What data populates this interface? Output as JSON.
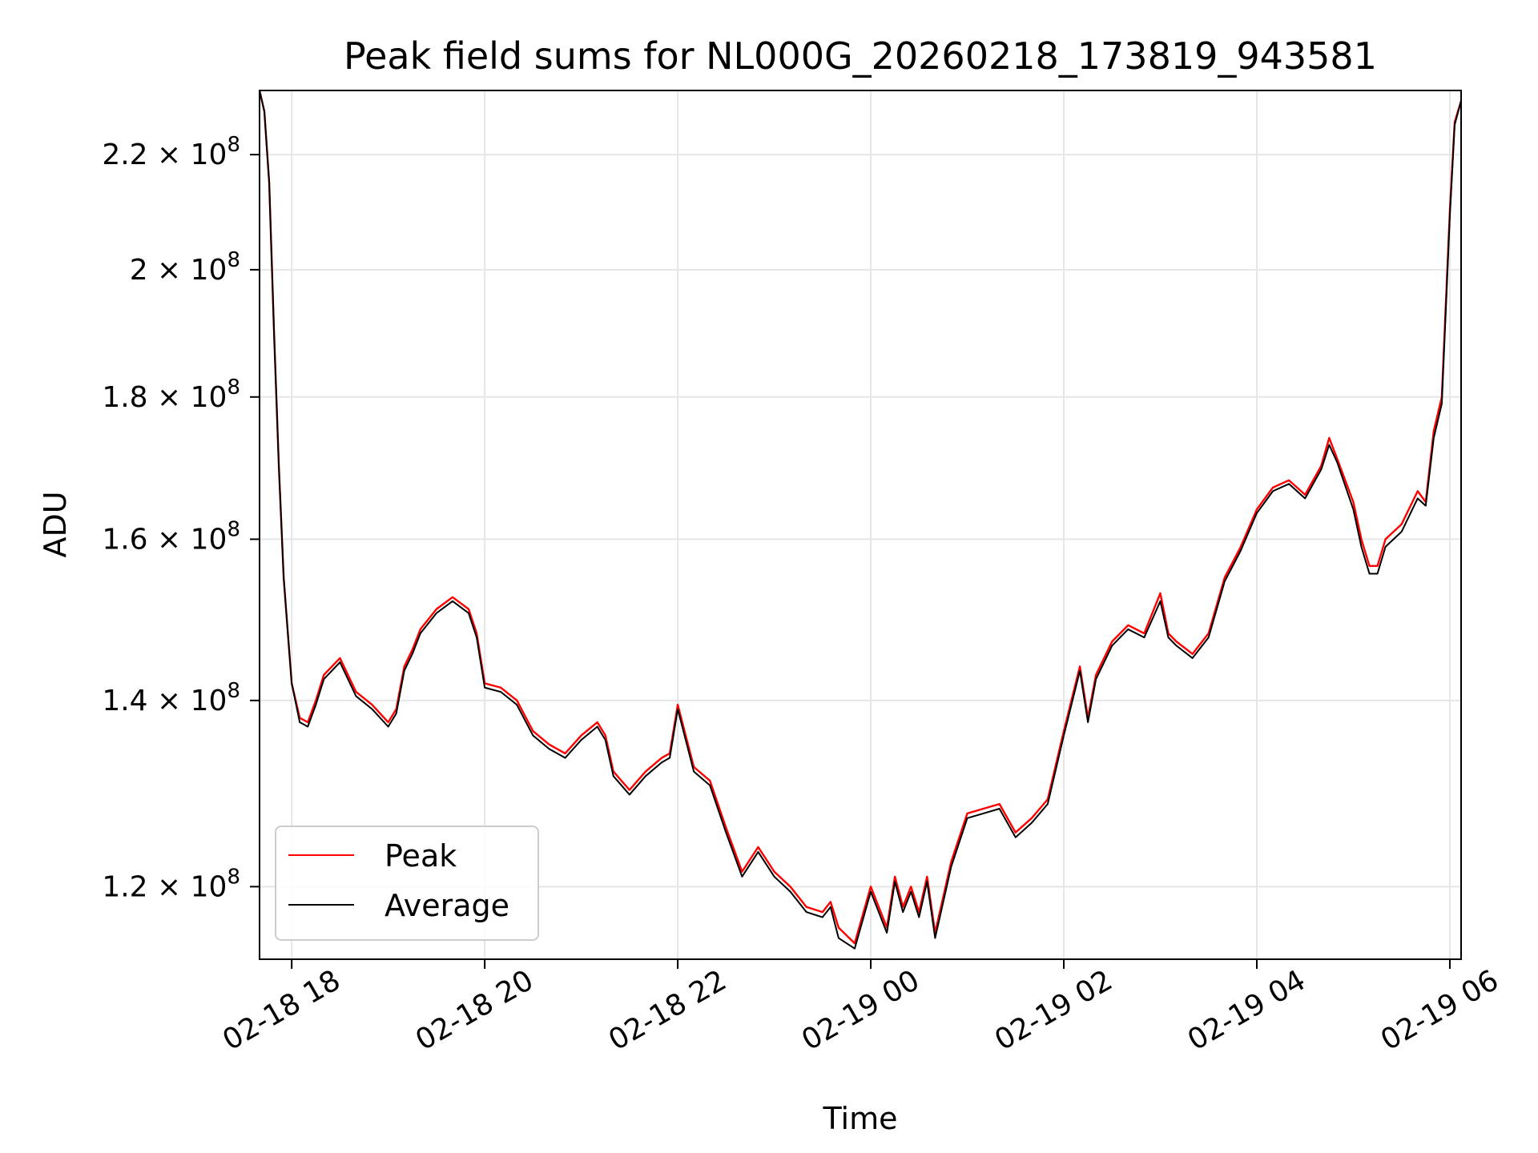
{
  "chart_data": {
    "type": "line",
    "title": "Peak field sums for NL000G_20260218_173819_943581",
    "xlabel": "Time",
    "ylabel": "ADU",
    "x_scale": "time",
    "y_scale": "log",
    "xlim": [
      "2026-02-18 17:40",
      "2026-02-19 06:07"
    ],
    "ylim": [
      113000000,
      232000000
    ],
    "grid": true,
    "legend_position": "lower-left",
    "x_ticks": [
      {
        "value": "2026-02-18 18:00",
        "label": "02-18 18"
      },
      {
        "value": "2026-02-18 20:00",
        "label": "02-18 20"
      },
      {
        "value": "2026-02-18 22:00",
        "label": "02-18 22"
      },
      {
        "value": "2026-02-19 00:00",
        "label": "02-19 00"
      },
      {
        "value": "2026-02-19 02:00",
        "label": "02-19 02"
      },
      {
        "value": "2026-02-19 04:00",
        "label": "02-19 04"
      },
      {
        "value": "2026-02-19 06:00",
        "label": "02-19 06"
      }
    ],
    "y_ticks": [
      {
        "value": 120000000,
        "mant": "1.2",
        "exp": "8"
      },
      {
        "value": 140000000,
        "mant": "1.4",
        "exp": "8"
      },
      {
        "value": 160000000,
        "mant": "1.6",
        "exp": "8"
      },
      {
        "value": 180000000,
        "mant": "1.8",
        "exp": "8"
      },
      {
        "value": 200000000,
        "mant": "2",
        "exp": "8"
      },
      {
        "value": 220000000,
        "mant": "2.2",
        "exp": "8"
      }
    ],
    "series": [
      {
        "name": "Peak",
        "color": "#ff0000",
        "x": [
          "2026-02-18 17:40",
          "2026-02-18 17:43",
          "2026-02-18 17:46",
          "2026-02-18 17:49",
          "2026-02-18 17:52",
          "2026-02-18 17:55",
          "2026-02-18 17:58",
          "2026-02-18 18:00",
          "2026-02-18 18:05",
          "2026-02-18 18:10",
          "2026-02-18 18:15",
          "2026-02-18 18:20",
          "2026-02-18 18:30",
          "2026-02-18 18:40",
          "2026-02-18 18:50",
          "2026-02-18 19:00",
          "2026-02-18 19:05",
          "2026-02-18 19:10",
          "2026-02-18 19:15",
          "2026-02-18 19:20",
          "2026-02-18 19:30",
          "2026-02-18 19:40",
          "2026-02-18 19:50",
          "2026-02-18 19:55",
          "2026-02-18 20:00",
          "2026-02-18 20:10",
          "2026-02-18 20:20",
          "2026-02-18 20:30",
          "2026-02-18 20:40",
          "2026-02-18 20:50",
          "2026-02-18 21:00",
          "2026-02-18 21:10",
          "2026-02-18 21:15",
          "2026-02-18 21:20",
          "2026-02-18 21:30",
          "2026-02-18 21:40",
          "2026-02-18 21:50",
          "2026-02-18 21:55",
          "2026-02-18 22:00",
          "2026-02-18 22:10",
          "2026-02-18 22:20",
          "2026-02-18 22:30",
          "2026-02-18 22:40",
          "2026-02-18 22:50",
          "2026-02-18 23:00",
          "2026-02-18 23:10",
          "2026-02-18 23:20",
          "2026-02-18 23:30",
          "2026-02-18 23:35",
          "2026-02-18 23:40",
          "2026-02-18 23:50",
          "2026-02-19 00:00",
          "2026-02-19 00:10",
          "2026-02-19 00:15",
          "2026-02-19 00:20",
          "2026-02-19 00:25",
          "2026-02-19 00:30",
          "2026-02-19 00:35",
          "2026-02-19 00:40",
          "2026-02-19 00:50",
          "2026-02-19 01:00",
          "2026-02-19 01:10",
          "2026-02-19 01:20",
          "2026-02-19 01:30",
          "2026-02-19 01:40",
          "2026-02-19 01:50",
          "2026-02-19 02:00",
          "2026-02-19 02:10",
          "2026-02-19 02:15",
          "2026-02-19 02:20",
          "2026-02-19 02:30",
          "2026-02-19 02:40",
          "2026-02-19 02:50",
          "2026-02-19 03:00",
          "2026-02-19 03:05",
          "2026-02-19 03:10",
          "2026-02-19 03:20",
          "2026-02-19 03:30",
          "2026-02-19 03:40",
          "2026-02-19 03:50",
          "2026-02-19 04:00",
          "2026-02-19 04:10",
          "2026-02-19 04:20",
          "2026-02-19 04:30",
          "2026-02-19 04:40",
          "2026-02-19 04:45",
          "2026-02-19 04:50",
          "2026-02-19 05:00",
          "2026-02-19 05:05",
          "2026-02-19 05:10",
          "2026-02-19 05:15",
          "2026-02-19 05:20",
          "2026-02-19 05:30",
          "2026-02-19 05:40",
          "2026-02-19 05:45",
          "2026-02-19 05:50",
          "2026-02-19 05:55",
          "2026-02-19 06:00",
          "2026-02-19 06:03",
          "2026-02-19 06:07"
        ],
        "values": [
          232000000,
          228000000,
          215000000,
          190000000,
          170000000,
          155000000,
          147000000,
          142000000,
          138000000,
          137500000,
          140000000,
          143000000,
          145000000,
          141000000,
          139500000,
          137500000,
          139000000,
          144000000,
          146000000,
          148500000,
          151000000,
          152500000,
          151000000,
          148000000,
          142000000,
          141500000,
          140000000,
          136500000,
          135000000,
          134000000,
          136000000,
          137500000,
          136000000,
          132000000,
          130000000,
          132000000,
          133500000,
          134000000,
          139500000,
          132500000,
          131000000,
          126000000,
          121500000,
          124000000,
          121500000,
          120000000,
          118000000,
          117500000,
          118500000,
          116000000,
          114500000,
          120000000,
          116000000,
          121000000,
          118000000,
          120000000,
          117500000,
          121000000,
          115500000,
          122500000,
          127500000,
          128000000,
          128500000,
          125500000,
          127000000,
          129000000,
          136500000,
          144000000,
          138000000,
          143000000,
          147000000,
          149000000,
          148000000,
          153000000,
          148000000,
          147000000,
          145500000,
          148000000,
          155000000,
          159000000,
          164000000,
          167000000,
          168000000,
          166000000,
          170000000,
          174000000,
          171000000,
          165000000,
          160000000,
          156500000,
          156500000,
          160000000,
          162000000,
          166500000,
          165000000,
          175000000,
          180000000,
          210000000,
          226000000,
          230000000
        ],
        "stroke_width": 1.2
      },
      {
        "name": "Average",
        "color": "#000000",
        "x": [
          "2026-02-18 17:40",
          "2026-02-18 17:43",
          "2026-02-18 17:46",
          "2026-02-18 17:49",
          "2026-02-18 17:52",
          "2026-02-18 17:55",
          "2026-02-18 17:58",
          "2026-02-18 18:00",
          "2026-02-18 18:05",
          "2026-02-18 18:10",
          "2026-02-18 18:15",
          "2026-02-18 18:20",
          "2026-02-18 18:30",
          "2026-02-18 18:40",
          "2026-02-18 18:50",
          "2026-02-18 19:00",
          "2026-02-18 19:05",
          "2026-02-18 19:10",
          "2026-02-18 19:15",
          "2026-02-18 19:20",
          "2026-02-18 19:30",
          "2026-02-18 19:40",
          "2026-02-18 19:50",
          "2026-02-18 19:55",
          "2026-02-18 20:00",
          "2026-02-18 20:10",
          "2026-02-18 20:20",
          "2026-02-18 20:30",
          "2026-02-18 20:40",
          "2026-02-18 20:50",
          "2026-02-18 21:00",
          "2026-02-18 21:10",
          "2026-02-18 21:15",
          "2026-02-18 21:20",
          "2026-02-18 21:30",
          "2026-02-18 21:40",
          "2026-02-18 21:50",
          "2026-02-18 21:55",
          "2026-02-18 22:00",
          "2026-02-18 22:10",
          "2026-02-18 22:20",
          "2026-02-18 22:30",
          "2026-02-18 22:40",
          "2026-02-18 22:50",
          "2026-02-18 23:00",
          "2026-02-18 23:10",
          "2026-02-18 23:20",
          "2026-02-18 23:30",
          "2026-02-18 23:35",
          "2026-02-18 23:40",
          "2026-02-18 23:50",
          "2026-02-19 00:00",
          "2026-02-19 00:10",
          "2026-02-19 00:15",
          "2026-02-19 00:20",
          "2026-02-19 00:25",
          "2026-02-19 00:30",
          "2026-02-19 00:35",
          "2026-02-19 00:40",
          "2026-02-19 00:50",
          "2026-02-19 01:00",
          "2026-02-19 01:10",
          "2026-02-19 01:20",
          "2026-02-19 01:30",
          "2026-02-19 01:40",
          "2026-02-19 01:50",
          "2026-02-19 02:00",
          "2026-02-19 02:10",
          "2026-02-19 02:15",
          "2026-02-19 02:20",
          "2026-02-19 02:30",
          "2026-02-19 02:40",
          "2026-02-19 02:50",
          "2026-02-19 03:00",
          "2026-02-19 03:05",
          "2026-02-19 03:10",
          "2026-02-19 03:20",
          "2026-02-19 03:30",
          "2026-02-19 03:40",
          "2026-02-19 03:50",
          "2026-02-19 04:00",
          "2026-02-19 04:10",
          "2026-02-19 04:20",
          "2026-02-19 04:30",
          "2026-02-19 04:40",
          "2026-02-19 04:45",
          "2026-02-19 04:50",
          "2026-02-19 05:00",
          "2026-02-19 05:05",
          "2026-02-19 05:10",
          "2026-02-19 05:15",
          "2026-02-19 05:20",
          "2026-02-19 05:30",
          "2026-02-19 05:40",
          "2026-02-19 05:45",
          "2026-02-19 05:50",
          "2026-02-19 05:55",
          "2026-02-19 06:00",
          "2026-02-19 06:03",
          "2026-02-19 06:07"
        ],
        "values": [
          232000000,
          228000000,
          215000000,
          190000000,
          170000000,
          155000000,
          147000000,
          142000000,
          137500000,
          137000000,
          139500000,
          142500000,
          144500000,
          140500000,
          139000000,
          137000000,
          138500000,
          143500000,
          145500000,
          148000000,
          150500000,
          152000000,
          150500000,
          147500000,
          141500000,
          141000000,
          139500000,
          136000000,
          134500000,
          133500000,
          135500000,
          137000000,
          135500000,
          131500000,
          129500000,
          131500000,
          133000000,
          133500000,
          139000000,
          132000000,
          130500000,
          125500000,
          121000000,
          123500000,
          121000000,
          119500000,
          117500000,
          117000000,
          118000000,
          115000000,
          114000000,
          119500000,
          115500000,
          120500000,
          117500000,
          119500000,
          117000000,
          120500000,
          115000000,
          122000000,
          127000000,
          127500000,
          128000000,
          125000000,
          126500000,
          128500000,
          136000000,
          143500000,
          137500000,
          142500000,
          146500000,
          148500000,
          147500000,
          152000000,
          147500000,
          146500000,
          145000000,
          147500000,
          154500000,
          158500000,
          163500000,
          166500000,
          167500000,
          165500000,
          169500000,
          173000000,
          170500000,
          164000000,
          159000000,
          155500000,
          155500000,
          159000000,
          161000000,
          165500000,
          164500000,
          174000000,
          179000000,
          209000000,
          225500000,
          230000000
        ],
        "stroke_width": 1.0
      }
    ]
  }
}
